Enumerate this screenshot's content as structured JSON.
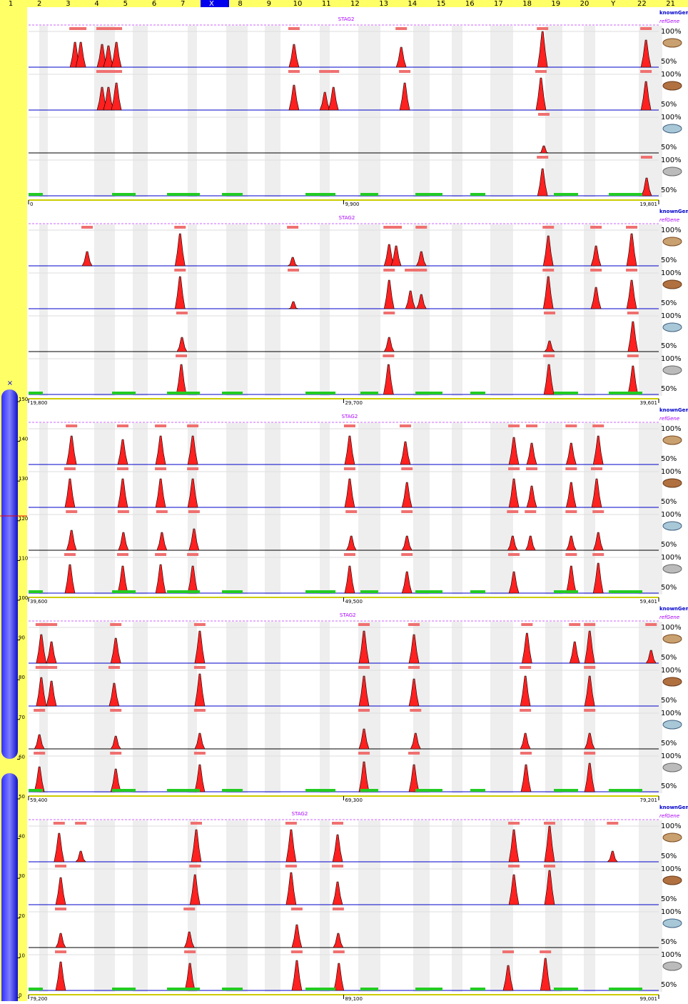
{
  "chromosomes": [
    "1",
    "2",
    "3",
    "4",
    "5",
    "6",
    "7",
    "X",
    "8",
    "9",
    "10",
    "11",
    "12",
    "13",
    "14",
    "15",
    "16",
    "17",
    "18",
    "19",
    "20",
    "Y",
    "22",
    "21"
  ],
  "ideogram_ticks": [
    150,
    140,
    130,
    120,
    110,
    100,
    90,
    80,
    70,
    60,
    50,
    40,
    30,
    20,
    10,
    0
  ],
  "track_labels": {
    "known": "knownGene",
    "ref": "refGene"
  },
  "identity_range": [
    50,
    100
  ],
  "identity_ticks": [
    {
      "value": 100,
      "label": "100%"
    },
    {
      "value": 50,
      "label": "50%"
    }
  ],
  "panels": [
    {
      "gene": "STAG2",
      "gene_position": 9980,
      "xlim": [
        0,
        19801
      ],
      "xticks": [
        0,
        {
          "value": 9900,
          "label": "9,900"
        },
        {
          "value": 19801,
          "label": "19,801"
        }
      ],
      "tracks": [
        [
          [
            1460,
            85
          ],
          [
            1640,
            85
          ],
          [
            2310,
            82
          ],
          [
            2510,
            80
          ],
          [
            2760,
            85
          ],
          [
            8340,
            82
          ],
          [
            11710,
            78
          ],
          [
            16150,
            100
          ],
          [
            19400,
            88
          ]
        ],
        [
          [
            2310,
            82
          ],
          [
            2510,
            82
          ],
          [
            2760,
            88
          ],
          [
            8340,
            85
          ],
          [
            9310,
            75
          ],
          [
            9580,
            82
          ],
          [
            11820,
            88
          ],
          [
            16100,
            95
          ],
          [
            19400,
            90
          ]
        ],
        [
          [
            16190,
            60
          ]
        ],
        [
          [
            16150,
            88
          ],
          [
            19420,
            75
          ]
        ]
      ]
    },
    {
      "gene": "STAG2",
      "gene_position": 29800,
      "xlim": [
        19800,
        39601
      ],
      "xticks": [
        {
          "value": 19800,
          "label": "19,800"
        },
        {
          "value": 29700,
          "label": "29,700"
        },
        {
          "value": 39601,
          "label": "39,601"
        }
      ],
      "tracks": [
        [
          [
            21640,
            70
          ],
          [
            24560,
            95
          ],
          [
            28100,
            62
          ],
          [
            31130,
            80
          ],
          [
            31350,
            78
          ],
          [
            32140,
            70
          ],
          [
            36130,
            92
          ],
          [
            37630,
            78
          ],
          [
            38750,
            95
          ]
        ],
        [
          [
            24560,
            95
          ],
          [
            28120,
            60
          ],
          [
            31130,
            90
          ],
          [
            31800,
            75
          ],
          [
            32140,
            70
          ],
          [
            36130,
            95
          ],
          [
            37630,
            80
          ],
          [
            38750,
            90
          ]
        ],
        [
          [
            24620,
            70
          ],
          [
            31130,
            70
          ],
          [
            36170,
            65
          ],
          [
            38790,
            92
          ]
        ],
        [
          [
            24600,
            92
          ],
          [
            31110,
            92
          ],
          [
            36150,
            92
          ],
          [
            38790,
            90
          ]
        ]
      ]
    },
    {
      "gene": "STAG2",
      "gene_position": 49690,
      "xlim": [
        39600,
        59401
      ],
      "xticks": [
        {
          "value": 39600,
          "label": "39,600"
        },
        {
          "value": 49500,
          "label": "49,500"
        },
        {
          "value": 59401,
          "label": "59,401"
        }
      ],
      "tracks": [
        [
          [
            40950,
            90
          ],
          [
            42560,
            85
          ],
          [
            43750,
            90
          ],
          [
            44760,
            90
          ],
          [
            49690,
            90
          ],
          [
            51440,
            82
          ],
          [
            54850,
            88
          ],
          [
            55410,
            80
          ],
          [
            56650,
            80
          ],
          [
            57500,
            90
          ]
        ],
        [
          [
            40900,
            90
          ],
          [
            42560,
            90
          ],
          [
            43750,
            90
          ],
          [
            44760,
            90
          ],
          [
            49690,
            90
          ],
          [
            51490,
            85
          ],
          [
            54850,
            90
          ],
          [
            55410,
            80
          ],
          [
            56650,
            85
          ],
          [
            57450,
            90
          ]
        ],
        [
          [
            40950,
            78
          ],
          [
            42580,
            75
          ],
          [
            43790,
            75
          ],
          [
            44800,
            80
          ],
          [
            49740,
            70
          ],
          [
            51490,
            70
          ],
          [
            54810,
            70
          ],
          [
            55370,
            70
          ],
          [
            56650,
            70
          ],
          [
            57500,
            75
          ]
        ],
        [
          [
            40900,
            90
          ],
          [
            42560,
            88
          ],
          [
            43750,
            90
          ],
          [
            44760,
            88
          ],
          [
            49690,
            88
          ],
          [
            51490,
            80
          ],
          [
            54850,
            80
          ],
          [
            56650,
            88
          ],
          [
            57500,
            92
          ]
        ]
      ]
    },
    {
      "gene": "STAG2",
      "gene_position": 69430,
      "xlim": [
        59400,
        79201
      ],
      "xticks": [
        {
          "value": 59400,
          "label": "59,400"
        },
        {
          "value": 69300,
          "label": "69,300"
        },
        {
          "value": 79201,
          "label": "79,201"
        }
      ],
      "tracks": [
        [
          [
            59800,
            90
          ],
          [
            60120,
            80
          ],
          [
            62140,
            85
          ],
          [
            64780,
            95
          ],
          [
            69940,
            95
          ],
          [
            71510,
            90
          ],
          [
            75060,
            92
          ],
          [
            76560,
            80
          ],
          [
            77030,
            95
          ],
          [
            78960,
            68
          ]
        ],
        [
          [
            59800,
            90
          ],
          [
            60120,
            85
          ],
          [
            62090,
            82
          ],
          [
            64780,
            95
          ],
          [
            69940,
            92
          ],
          [
            71510,
            88
          ],
          [
            75010,
            92
          ],
          [
            77030,
            92
          ]
        ],
        [
          [
            59740,
            70
          ],
          [
            62140,
            68
          ],
          [
            64780,
            72
          ],
          [
            69940,
            78
          ],
          [
            71560,
            72
          ],
          [
            75010,
            72
          ],
          [
            77030,
            72
          ]
        ],
        [
          [
            59740,
            85
          ],
          [
            62140,
            82
          ],
          [
            64780,
            88
          ],
          [
            69940,
            92
          ],
          [
            71510,
            88
          ],
          [
            75030,
            88
          ],
          [
            77030,
            90
          ]
        ]
      ]
    },
    {
      "gene": "STAG2",
      "gene_position": 87720,
      "xlim": [
        79200,
        99001
      ],
      "xticks": [
        {
          "value": 79200,
          "label": "79,200"
        },
        {
          "value": 89100,
          "label": "89,100"
        },
        {
          "value": 99001,
          "label": "99,001"
        }
      ],
      "tracks": [
        [
          [
            80160,
            90
          ],
          [
            80840,
            65
          ],
          [
            84470,
            95
          ],
          [
            87450,
            95
          ],
          [
            88910,
            88
          ],
          [
            94450,
            95
          ],
          [
            95570,
            100
          ],
          [
            97550,
            65
          ]
        ],
        [
          [
            80210,
            88
          ],
          [
            84430,
            92
          ],
          [
            87450,
            95
          ],
          [
            88910,
            82
          ],
          [
            94450,
            92
          ],
          [
            95570,
            98
          ]
        ],
        [
          [
            80210,
            70
          ],
          [
            84250,
            72
          ],
          [
            87630,
            82
          ],
          [
            88930,
            70
          ]
        ],
        [
          [
            80210,
            90
          ],
          [
            84270,
            88
          ],
          [
            87630,
            92
          ],
          [
            88950,
            88
          ],
          [
            94270,
            85
          ],
          [
            95440,
            95
          ]
        ]
      ]
    }
  ]
}
